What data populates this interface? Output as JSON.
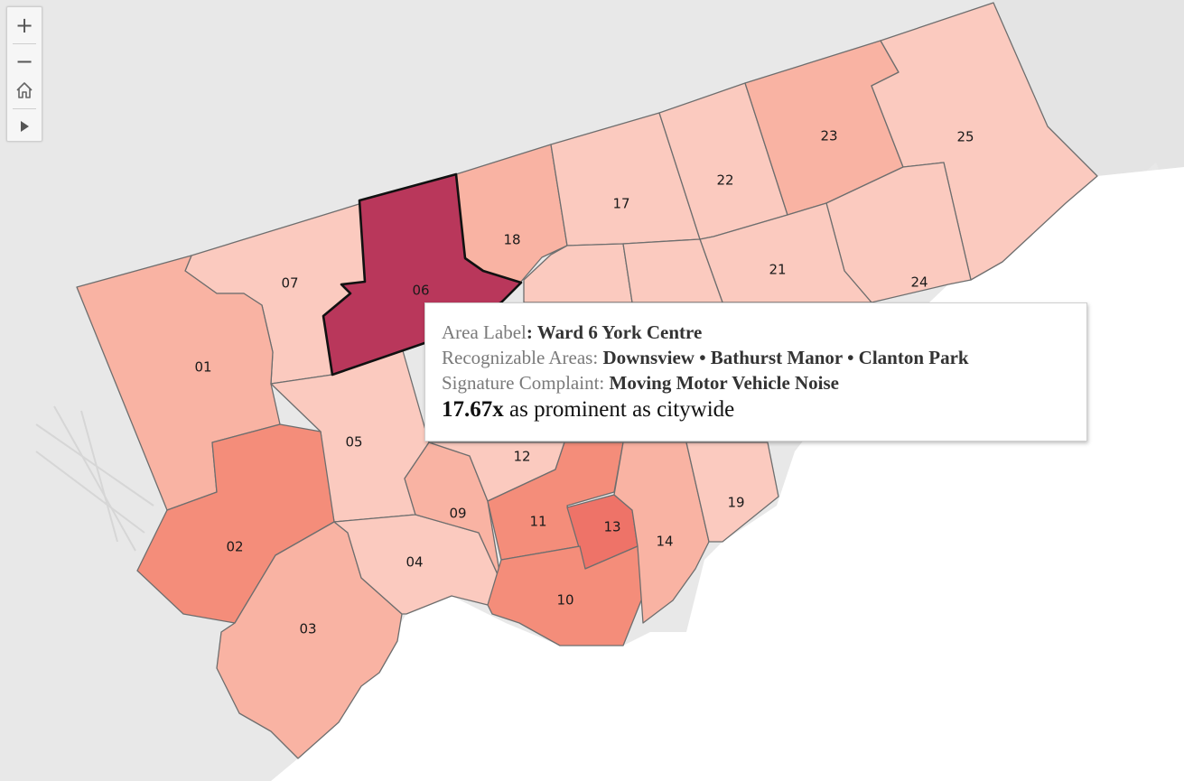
{
  "controls": {
    "zoom_in": "+",
    "zoom_out": "−",
    "home_icon": "home-icon",
    "play_icon": "play-icon"
  },
  "map": {
    "colors": {
      "very_light": "#fbcabf",
      "light": "#f9b3a3",
      "medium": "#f48d7a",
      "strong": "#ee7368",
      "selected": "#b9375b",
      "basemap": "#e8e8e8",
      "water": "#ffffff"
    },
    "wards": [
      {
        "id": "01",
        "label": "01",
        "level": "light"
      },
      {
        "id": "02",
        "label": "02",
        "level": "medium"
      },
      {
        "id": "03",
        "label": "03",
        "level": "light"
      },
      {
        "id": "04",
        "label": "04",
        "level": "very_light"
      },
      {
        "id": "05",
        "label": "05",
        "level": "very_light"
      },
      {
        "id": "06",
        "label": "06",
        "level": "selected"
      },
      {
        "id": "07",
        "label": "07",
        "level": "very_light"
      },
      {
        "id": "09",
        "label": "09",
        "level": "light"
      },
      {
        "id": "10",
        "label": "10",
        "level": "medium"
      },
      {
        "id": "11",
        "label": "11",
        "level": "medium"
      },
      {
        "id": "12",
        "label": "12",
        "level": "very_light"
      },
      {
        "id": "13",
        "label": "13",
        "level": "strong"
      },
      {
        "id": "14",
        "label": "14",
        "level": "light"
      },
      {
        "id": "17",
        "label": "17",
        "level": "very_light"
      },
      {
        "id": "18",
        "label": "18",
        "level": "light"
      },
      {
        "id": "19",
        "label": "19",
        "level": "very_light"
      },
      {
        "id": "21",
        "label": "21",
        "level": "very_light"
      },
      {
        "id": "22",
        "label": "22",
        "level": "very_light"
      },
      {
        "id": "23",
        "label": "23",
        "level": "light"
      },
      {
        "id": "24",
        "label": "24",
        "level": "very_light"
      },
      {
        "id": "25",
        "label": "25",
        "level": "very_light"
      }
    ]
  },
  "tooltip": {
    "area_label_key": "Area Label",
    "area_label_value": "Ward 6 York Centre",
    "recognizable_key": "Recognizable Areas",
    "recognizable_value": "Downsview • Bathurst Manor • Clanton Park",
    "complaint_key": "Signature Complaint",
    "complaint_value": "Moving Motor Vehicle Noise",
    "ratio_value": "17.67x",
    "ratio_text": "as prominent as citywide"
  }
}
